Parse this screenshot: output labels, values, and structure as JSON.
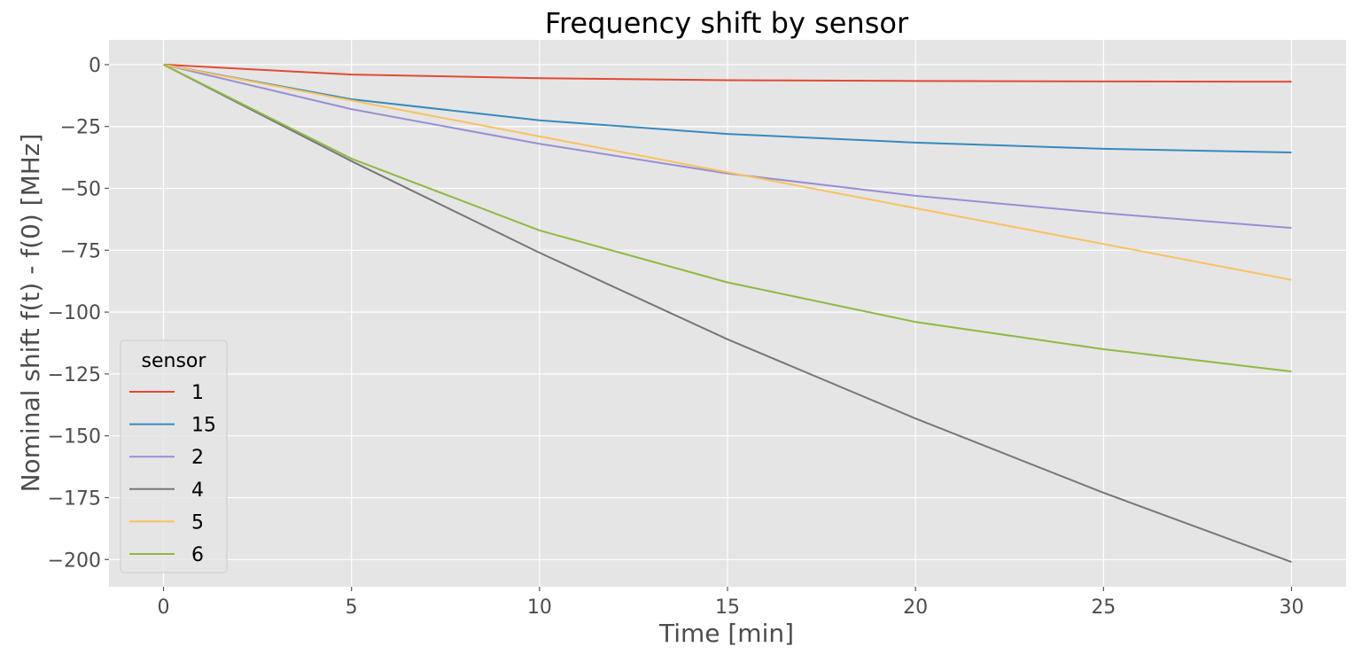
{
  "chart_data": {
    "type": "line",
    "title": "Frequency shift by sensor",
    "xlabel": "Time [min]",
    "ylabel": "Nominal shift f(t) - f(0) [MHz]",
    "x": [
      0,
      5,
      10,
      15,
      20,
      25,
      30
    ],
    "xlim": [
      -1.45,
      31.45
    ],
    "ylim": [
      -211,
      10
    ],
    "xticks": [
      0,
      5,
      10,
      15,
      20,
      25,
      30
    ],
    "yticks": [
      0,
      -25,
      -50,
      -75,
      -100,
      -125,
      -150,
      -175,
      -200
    ],
    "ytick_labels": [
      "0",
      "−25",
      "−50",
      "−75",
      "−100",
      "−125",
      "−150",
      "−175",
      "−200"
    ],
    "grid": true,
    "legend": {
      "title": "sensor",
      "placement": "lower-left"
    },
    "series": [
      {
        "name": "1",
        "color": "#E24A33",
        "values": [
          0,
          -4,
          -5.5,
          -6.3,
          -6.6,
          -6.8,
          -6.9
        ]
      },
      {
        "name": "15",
        "color": "#348ABD",
        "values": [
          0,
          -14,
          -22.5,
          -28,
          -31.5,
          -34,
          -35.5
        ]
      },
      {
        "name": "2",
        "color": "#988ED5",
        "values": [
          0,
          -18,
          -32,
          -44,
          -53,
          -60,
          -66
        ]
      },
      {
        "name": "4",
        "color": "#777777",
        "values": [
          0,
          -39,
          -76,
          -111,
          -143,
          -173,
          -201
        ]
      },
      {
        "name": "5",
        "color": "#FBC15E",
        "values": [
          0,
          -14.5,
          -29,
          -43.5,
          -58,
          -72.5,
          -87
        ]
      },
      {
        "name": "6",
        "color": "#8EBA42",
        "values": [
          0,
          -38,
          -67,
          -88,
          -104,
          -115,
          -124
        ]
      }
    ]
  }
}
